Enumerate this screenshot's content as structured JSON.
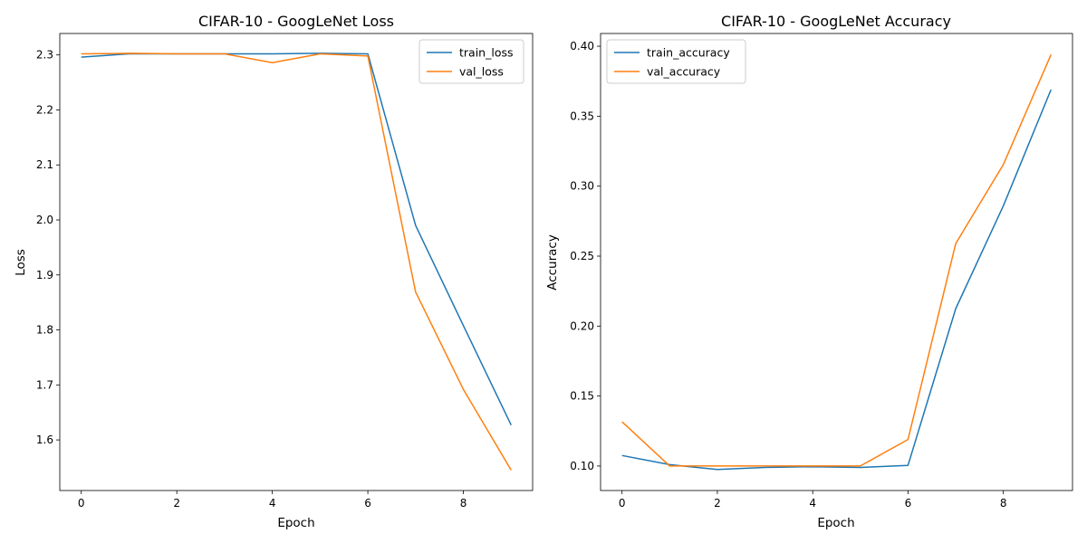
{
  "colors": {
    "train": "#1f77b4",
    "val": "#ff7f0e"
  },
  "chart_data": [
    {
      "type": "line",
      "title": "CIFAR-10 - GoogLeNet Loss",
      "xlabel": "Epoch",
      "ylabel": "Loss",
      "xlim": [
        -0.45,
        9.45
      ],
      "ylim": [
        1.508,
        2.339
      ],
      "xticks": [
        0,
        2,
        4,
        6,
        8
      ],
      "xtick_labels": [
        "0",
        "2",
        "4",
        "6",
        "8"
      ],
      "yticks": [
        1.6,
        1.7,
        1.8,
        1.9,
        2.0,
        2.1,
        2.2,
        2.3
      ],
      "ytick_labels": [
        "1.6",
        "1.7",
        "1.8",
        "1.9",
        "2.0",
        "2.1",
        "2.2",
        "2.3"
      ],
      "grid": false,
      "legend": "upper right",
      "x": [
        0,
        1,
        2,
        3,
        4,
        5,
        6,
        7,
        8,
        9
      ],
      "series": [
        {
          "name": "train_loss",
          "color": "#1f77b4",
          "values": [
            2.296,
            2.302,
            2.302,
            2.302,
            2.302,
            2.303,
            2.302,
            1.99,
            1.808,
            1.627
          ]
        },
        {
          "name": "val_loss",
          "color": "#ff7f0e",
          "values": [
            2.302,
            2.303,
            2.302,
            2.302,
            2.286,
            2.302,
            2.298,
            1.869,
            1.692,
            1.545
          ]
        }
      ]
    },
    {
      "type": "line",
      "title": "CIFAR-10 - GoogLeNet Accuracy",
      "xlabel": "Epoch",
      "ylabel": "Accuracy",
      "xlim": [
        -0.45,
        9.45
      ],
      "ylim": [
        0.0825,
        0.4091
      ],
      "xticks": [
        0,
        2,
        4,
        6,
        8
      ],
      "xtick_labels": [
        "0",
        "2",
        "4",
        "6",
        "8"
      ],
      "yticks": [
        0.1,
        0.15,
        0.2,
        0.25,
        0.3,
        0.35,
        0.4
      ],
      "ytick_labels": [
        "0.10",
        "0.15",
        "0.20",
        "0.25",
        "0.30",
        "0.35",
        "0.40"
      ],
      "grid": false,
      "legend": "upper left",
      "x": [
        0,
        1,
        2,
        3,
        4,
        5,
        6,
        7,
        8,
        9
      ],
      "series": [
        {
          "name": "train_accuracy",
          "color": "#1f77b4",
          "values": [
            0.1075,
            0.101,
            0.0975,
            0.099,
            0.0995,
            0.099,
            0.1005,
            0.2125,
            0.286,
            0.369
          ]
        },
        {
          "name": "val_accuracy",
          "color": "#ff7f0e",
          "values": [
            0.1316,
            0.1,
            0.1,
            0.1,
            0.1,
            0.1,
            0.119,
            0.259,
            0.3155,
            0.394
          ]
        }
      ]
    }
  ]
}
